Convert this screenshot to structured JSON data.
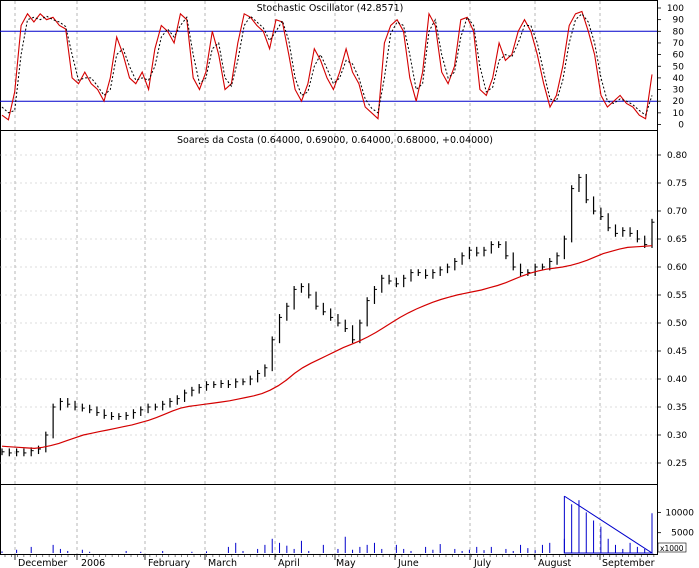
{
  "chart_data": [
    {
      "type": "line",
      "title": "Stochastic Oscillator (42.8571)",
      "ylim": [
        0,
        100
      ],
      "y_ticks": [
        "100",
        "90",
        "80",
        "70",
        "60",
        "50",
        "40",
        "30",
        "20",
        "10",
        "0"
      ],
      "reference_lines": [
        80,
        20
      ],
      "grid": true,
      "series": [
        {
          "style": "solid",
          "color": "#d40000",
          "values": [
            8,
            4,
            28,
            85,
            95,
            88,
            95,
            90,
            92,
            85,
            82,
            40,
            35,
            45,
            35,
            30,
            20,
            40,
            75,
            60,
            40,
            35,
            45,
            30,
            65,
            85,
            80,
            70,
            95,
            90,
            40,
            30,
            45,
            80,
            60,
            30,
            35,
            70,
            95,
            92,
            85,
            80,
            65,
            90,
            88,
            60,
            30,
            20,
            35,
            65,
            55,
            40,
            30,
            45,
            65,
            45,
            35,
            15,
            10,
            5,
            70,
            85,
            90,
            80,
            40,
            20,
            45,
            95,
            85,
            45,
            35,
            50,
            90,
            92,
            80,
            30,
            25,
            40,
            70,
            55,
            60,
            80,
            90,
            80,
            60,
            35,
            15,
            25,
            50,
            85,
            95,
            97,
            80,
            60,
            25,
            15,
            20,
            25,
            18,
            15,
            8,
            5,
            43
          ]
        },
        {
          "style": "dashed",
          "color": "#000000",
          "values": [
            15,
            10,
            12,
            60,
            90,
            92,
            90,
            93,
            90,
            88,
            84,
            60,
            38,
            40,
            40,
            33,
            25,
            30,
            60,
            65,
            50,
            38,
            40,
            38,
            50,
            75,
            82,
            75,
            85,
            92,
            60,
            35,
            40,
            65,
            70,
            40,
            33,
            55,
            85,
            93,
            88,
            83,
            72,
            80,
            89,
            72,
            40,
            25,
            28,
            50,
            60,
            48,
            35,
            40,
            55,
            52,
            40,
            22,
            14,
            10,
            40,
            78,
            88,
            85,
            60,
            30,
            35,
            80,
            90,
            60,
            40,
            45,
            75,
            92,
            85,
            50,
            28,
            32,
            55,
            60,
            58,
            70,
            85,
            85,
            70,
            45,
            22,
            20,
            38,
            70,
            90,
            95,
            88,
            70,
            40,
            20,
            18,
            22,
            20,
            17,
            12,
            8,
            25
          ]
        }
      ]
    },
    {
      "type": "line",
      "title": "Soares da Costa (0.64000, 0.69000, 0.64000, 0.68000, +0.04000)",
      "ylim": [
        0.2,
        0.82
      ],
      "y_ticks": [
        "0.80",
        "0.75",
        "0.70",
        "0.65",
        "0.60",
        "0.55",
        "0.50",
        "0.45",
        "0.40",
        "0.35",
        "0.30",
        "0.25"
      ],
      "x_labels": [
        "December",
        "2006",
        "February",
        "March",
        "April",
        "May",
        "June",
        "July",
        "August",
        "September"
      ],
      "grid": true,
      "series": [
        {
          "style": "price-bars",
          "color": "#000000",
          "values": [
            0.27,
            0.268,
            0.27,
            0.268,
            0.272,
            0.275,
            0.3,
            0.35,
            0.36,
            0.355,
            0.35,
            0.348,
            0.345,
            0.34,
            0.335,
            0.333,
            0.333,
            0.335,
            0.34,
            0.345,
            0.35,
            0.35,
            0.355,
            0.36,
            0.365,
            0.375,
            0.38,
            0.385,
            0.39,
            0.39,
            0.392,
            0.39,
            0.395,
            0.395,
            0.4,
            0.41,
            0.42,
            0.47,
            0.51,
            0.53,
            0.56,
            0.565,
            0.55,
            0.53,
            0.52,
            0.51,
            0.5,
            0.49,
            0.47,
            0.5,
            0.54,
            0.56,
            0.58,
            0.575,
            0.57,
            0.58,
            0.59,
            0.59,
            0.585,
            0.59,
            0.595,
            0.6,
            0.61,
            0.62,
            0.63,
            0.625,
            0.63,
            0.64,
            0.64,
            0.62,
            0.6,
            0.59,
            0.59,
            0.6,
            0.6,
            0.61,
            0.62,
            0.65,
            0.74,
            0.76,
            0.72,
            0.7,
            0.69,
            0.67,
            0.66,
            0.665,
            0.66,
            0.65,
            0.64,
            0.68
          ]
        },
        {
          "style": "solid",
          "color": "#d40000",
          "values": [
            0.28,
            0.279,
            0.278,
            0.277,
            0.276,
            0.278,
            0.281,
            0.285,
            0.29,
            0.295,
            0.3,
            0.303,
            0.306,
            0.309,
            0.312,
            0.315,
            0.318,
            0.322,
            0.326,
            0.331,
            0.337,
            0.343,
            0.348,
            0.351,
            0.353,
            0.355,
            0.357,
            0.359,
            0.361,
            0.364,
            0.367,
            0.37,
            0.374,
            0.38,
            0.388,
            0.398,
            0.41,
            0.42,
            0.428,
            0.435,
            0.442,
            0.449,
            0.456,
            0.462,
            0.468,
            0.475,
            0.483,
            0.492,
            0.501,
            0.51,
            0.518,
            0.525,
            0.531,
            0.537,
            0.542,
            0.546,
            0.55,
            0.553,
            0.556,
            0.559,
            0.563,
            0.567,
            0.572,
            0.578,
            0.584,
            0.589,
            0.593,
            0.596,
            0.598,
            0.6,
            0.603,
            0.607,
            0.612,
            0.618,
            0.624,
            0.628,
            0.632,
            0.635,
            0.636,
            0.637,
            0.638
          ]
        }
      ]
    },
    {
      "type": "bar",
      "title": "",
      "ylim": [
        0,
        16000
      ],
      "y_ticks": [
        "10000",
        "5000"
      ],
      "unit_label": "x1000",
      "grid": true,
      "volume_values": [
        400,
        0,
        800,
        0,
        1500,
        0,
        0,
        2000,
        1000,
        500,
        0,
        800,
        300,
        0,
        0,
        0,
        0,
        500,
        0,
        300,
        0,
        0,
        500,
        0,
        0,
        0,
        300,
        0,
        400,
        0,
        0,
        1500,
        2500,
        500,
        0,
        1000,
        2000,
        3500,
        2500,
        1800,
        1000,
        3000,
        500,
        0,
        2000,
        0,
        1000,
        4000,
        800,
        1500,
        2000,
        2500,
        1000,
        0,
        2000,
        1000,
        500,
        0,
        1500,
        800,
        2200,
        0,
        1000,
        500,
        800,
        1500,
        700,
        1500,
        0,
        1000,
        500,
        2000,
        1200,
        700,
        2000,
        2500,
        0,
        3500,
        12000,
        13000,
        10000,
        8000,
        6500,
        3500,
        2000,
        1000,
        2500,
        1500,
        1000,
        9800
      ],
      "trend_line": [
        14000,
        0
      ]
    }
  ]
}
